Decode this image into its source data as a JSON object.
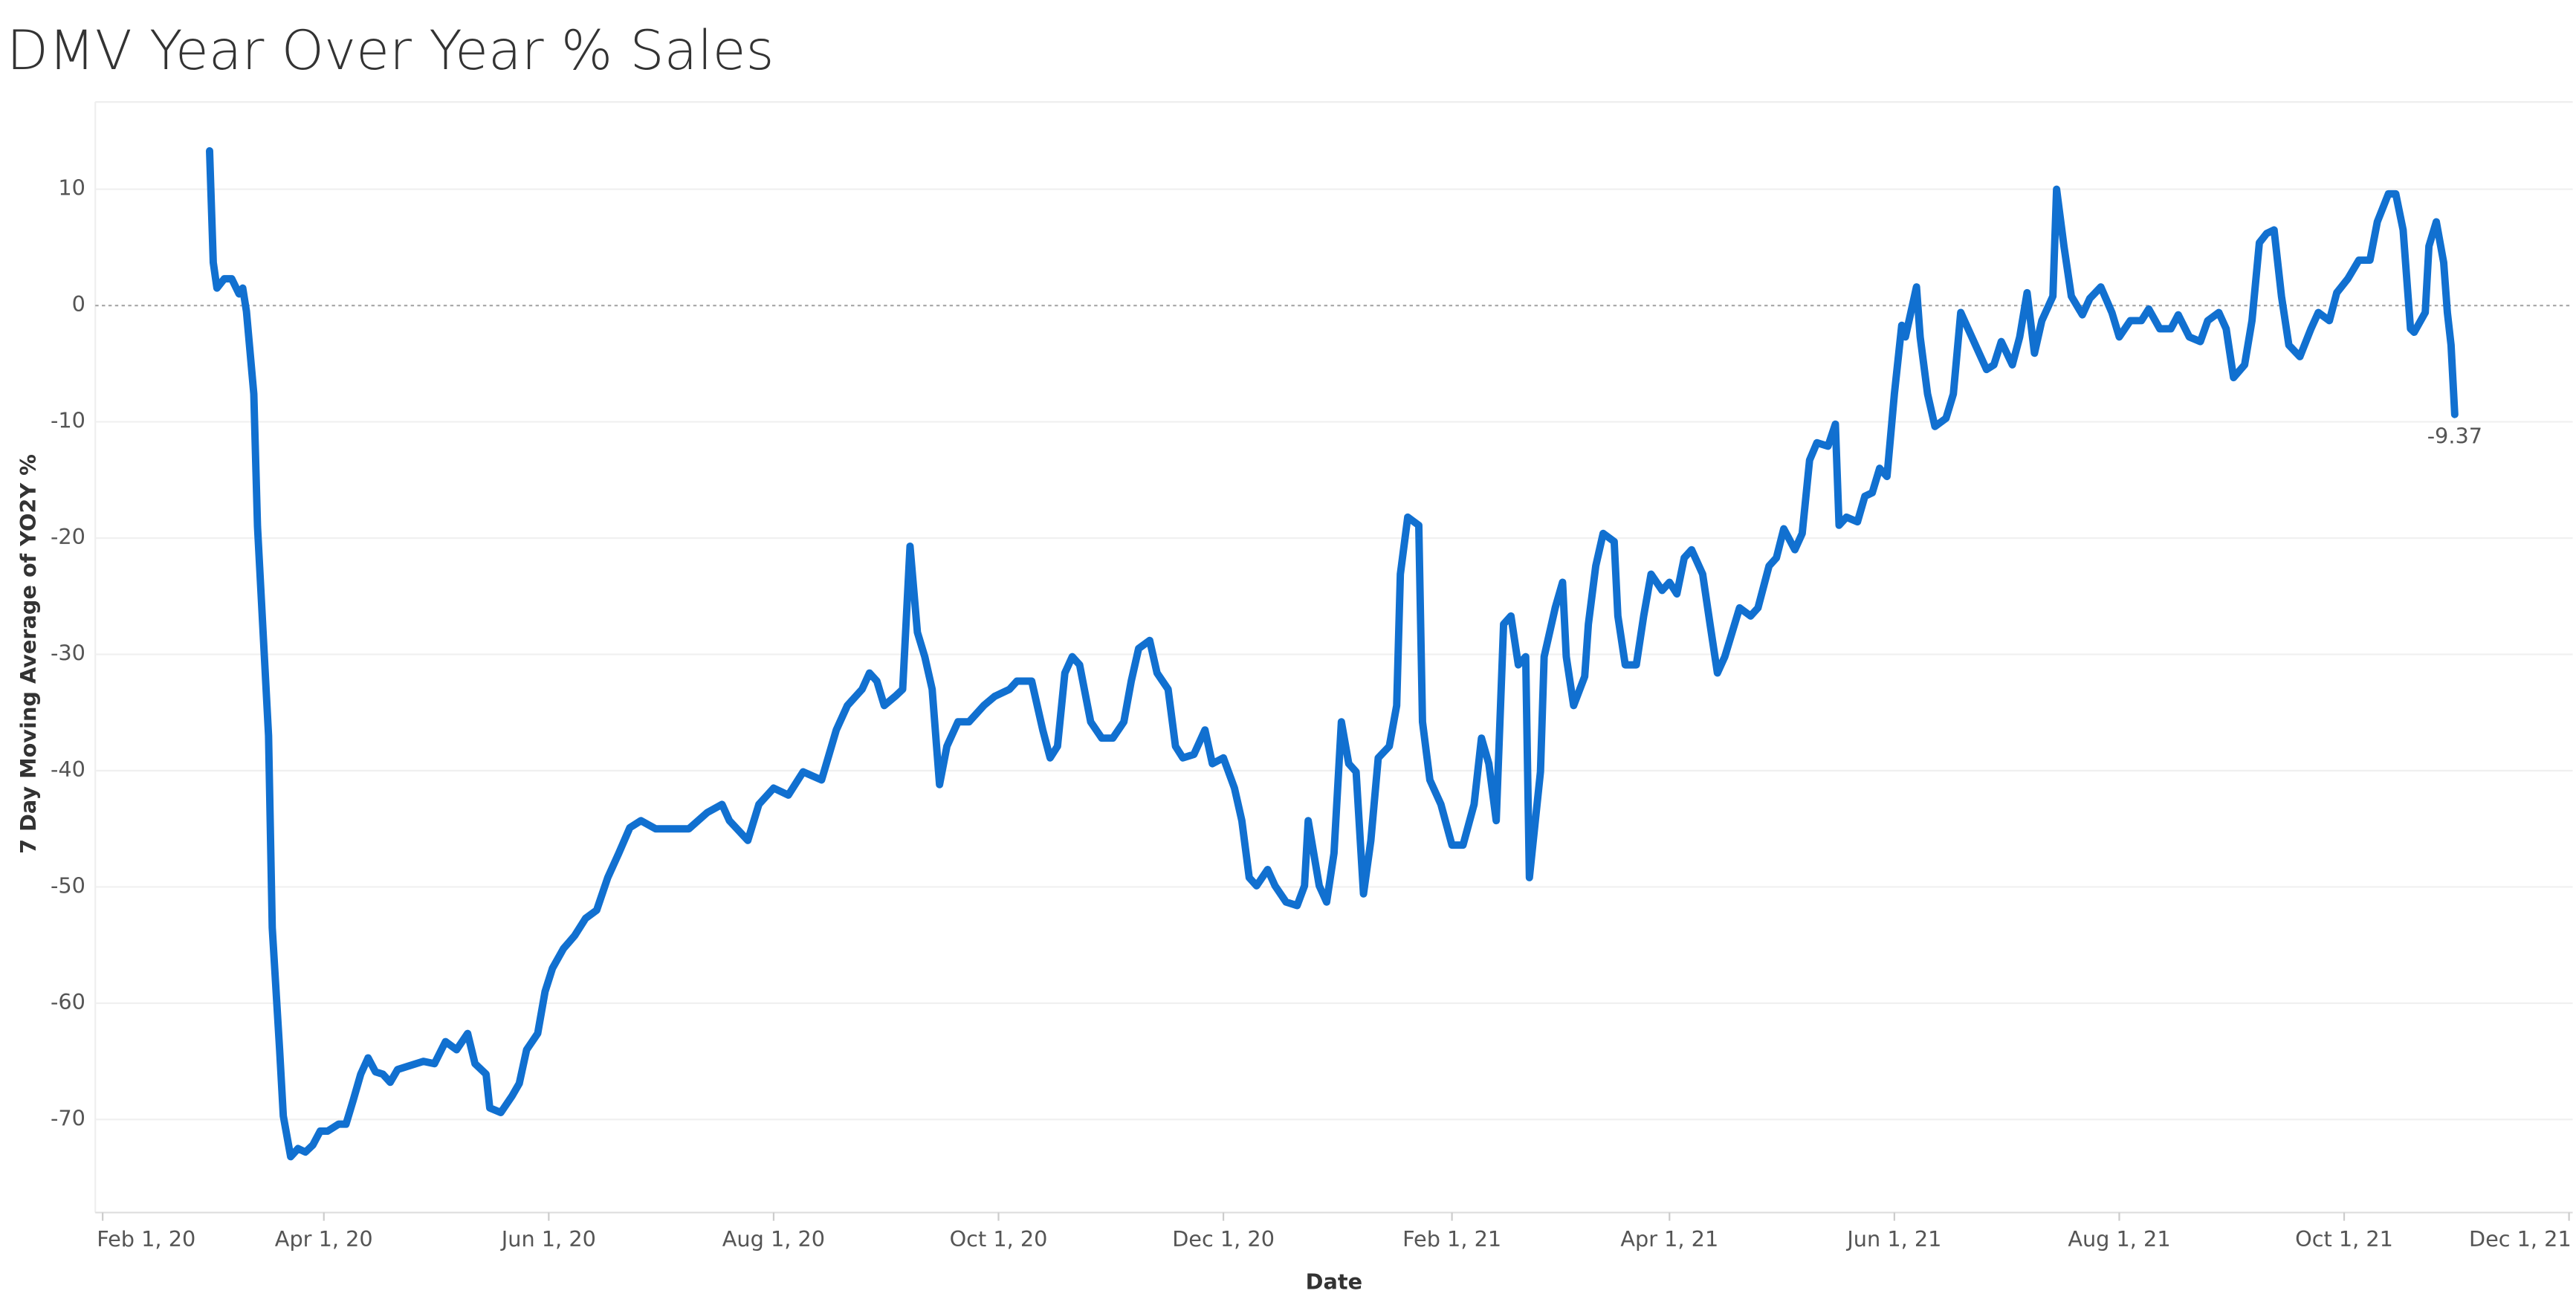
{
  "chart_data": {
    "type": "line",
    "title": "DMV Year Over Year % Sales",
    "x_label": "Date",
    "y_label": "7 Day Moving Average of YO2Y %",
    "color": "#1170d0",
    "grid": true,
    "zero_line": true,
    "xlim": [
      "2020-01-30",
      "2021-12-02"
    ],
    "xticks": [
      {
        "value": "2020-02-01",
        "label": "Feb 1, 20"
      },
      {
        "value": "2020-04-01",
        "label": "Apr 1, 20"
      },
      {
        "value": "2020-06-01",
        "label": "Jun 1, 20"
      },
      {
        "value": "2020-08-01",
        "label": "Aug 1, 20"
      },
      {
        "value": "2020-10-01",
        "label": "Oct 1, 20"
      },
      {
        "value": "2020-12-01",
        "label": "Dec 1, 20"
      },
      {
        "value": "2021-02-01",
        "label": "Feb 1, 21"
      },
      {
        "value": "2021-04-01",
        "label": "Apr 1, 21"
      },
      {
        "value": "2021-06-01",
        "label": "Jun 1, 21"
      },
      {
        "value": "2021-08-01",
        "label": "Aug 1, 21"
      },
      {
        "value": "2021-10-01",
        "label": "Oct 1, 21"
      },
      {
        "value": "2021-12-01",
        "label": "Dec 1, 21"
      }
    ],
    "ylim": [
      -78,
      17.5
    ],
    "yticks": [
      -70,
      -60,
      -50,
      -40,
      -30,
      -20,
      -10,
      0,
      10
    ],
    "x": [
      "2020-03-01",
      "2020-03-02",
      "2020-03-03",
      "2020-03-05",
      "2020-03-07",
      "2020-03-09",
      "2020-03-10",
      "2020-03-11",
      "2020-03-13",
      "2020-03-14",
      "2020-03-17",
      "2020-03-18",
      "2020-03-20",
      "2020-03-21",
      "2020-03-23",
      "2020-03-25",
      "2020-03-27",
      "2020-03-29",
      "2020-03-31",
      "2020-04-02",
      "2020-04-05",
      "2020-04-07",
      "2020-04-09",
      "2020-04-11",
      "2020-04-13",
      "2020-04-15",
      "2020-04-17",
      "2020-04-19",
      "2020-04-21",
      "2020-04-24",
      "2020-04-28",
      "2020-05-01",
      "2020-05-04",
      "2020-05-07",
      "2020-05-10",
      "2020-05-12",
      "2020-05-15",
      "2020-05-16",
      "2020-05-19",
      "2020-05-22",
      "2020-05-24",
      "2020-05-26",
      "2020-05-29",
      "2020-05-31",
      "2020-06-02",
      "2020-06-05",
      "2020-06-08",
      "2020-06-11",
      "2020-06-14",
      "2020-06-17",
      "2020-06-20",
      "2020-06-23",
      "2020-06-26",
      "2020-06-30",
      "2020-07-04",
      "2020-07-09",
      "2020-07-14",
      "2020-07-18",
      "2020-07-20",
      "2020-07-25",
      "2020-07-28",
      "2020-08-01",
      "2020-08-05",
      "2020-08-09",
      "2020-08-14",
      "2020-08-18",
      "2020-08-21",
      "2020-08-25",
      "2020-08-27",
      "2020-08-29",
      "2020-08-31",
      "2020-09-03",
      "2020-09-05",
      "2020-09-07",
      "2020-09-09",
      "2020-09-11",
      "2020-09-13",
      "2020-09-15",
      "2020-09-17",
      "2020-09-20",
      "2020-09-23",
      "2020-09-27",
      "2020-09-30",
      "2020-10-04",
      "2020-10-06",
      "2020-10-10",
      "2020-10-13",
      "2020-10-15",
      "2020-10-17",
      "2020-10-19",
      "2020-10-21",
      "2020-10-23",
      "2020-10-26",
      "2020-10-29",
      "2020-11-01",
      "2020-11-04",
      "2020-11-06",
      "2020-11-08",
      "2020-11-11",
      "2020-11-13",
      "2020-11-16",
      "2020-11-18",
      "2020-11-20",
      "2020-11-23",
      "2020-11-26",
      "2020-11-28",
      "2020-12-01",
      "2020-12-04",
      "2020-12-06",
      "2020-12-08",
      "2020-12-10",
      "2020-12-13",
      "2020-12-15",
      "2020-12-18",
      "2020-12-21",
      "2020-12-23",
      "2020-12-24",
      "2020-12-27",
      "2020-12-29",
      "2020-12-31",
      "2021-01-02",
      "2021-01-04",
      "2021-01-06",
      "2021-01-08",
      "2021-01-10",
      "2021-01-12",
      "2021-01-15",
      "2021-01-17",
      "2021-01-18",
      "2021-01-20",
      "2021-01-23",
      "2021-01-24",
      "2021-01-26",
      "2021-01-29",
      "2021-02-01",
      "2021-02-04",
      "2021-02-07",
      "2021-02-09",
      "2021-02-11",
      "2021-02-13",
      "2021-02-15",
      "2021-02-17",
      "2021-02-19",
      "2021-02-21",
      "2021-02-22",
      "2021-02-25",
      "2021-02-26",
      "2021-03-01",
      "2021-03-03",
      "2021-03-04",
      "2021-03-06",
      "2021-03-09",
      "2021-03-10",
      "2021-03-12",
      "2021-03-14",
      "2021-03-17",
      "2021-03-18",
      "2021-03-20",
      "2021-03-23",
      "2021-03-25",
      "2021-03-27",
      "2021-03-30",
      "2021-04-01",
      "2021-04-03",
      "2021-04-05",
      "2021-04-07",
      "2021-04-10",
      "2021-04-12",
      "2021-04-14",
      "2021-04-16",
      "2021-04-18",
      "2021-04-20",
      "2021-04-23",
      "2021-04-25",
      "2021-04-28",
      "2021-04-30",
      "2021-05-02",
      "2021-05-05",
      "2021-05-07",
      "2021-05-09",
      "2021-05-11",
      "2021-05-14",
      "2021-05-16",
      "2021-05-17",
      "2021-05-19",
      "2021-05-22",
      "2021-05-24",
      "2021-05-26",
      "2021-05-28",
      "2021-05-30",
      "2021-06-01",
      "2021-06-03",
      "2021-06-04",
      "2021-06-07",
      "2021-06-08",
      "2021-06-10",
      "2021-06-12",
      "2021-06-15",
      "2021-06-17",
      "2021-06-19",
      "2021-06-21",
      "2021-06-24",
      "2021-06-26",
      "2021-06-28",
      "2021-06-30",
      "2021-07-03",
      "2021-07-05",
      "2021-07-07",
      "2021-07-09",
      "2021-07-11",
      "2021-07-14",
      "2021-07-15",
      "2021-07-17",
      "2021-07-19",
      "2021-07-22",
      "2021-07-24",
      "2021-07-27",
      "2021-07-30",
      "2021-08-01",
      "2021-08-04",
      "2021-08-07",
      "2021-08-09",
      "2021-08-12",
      "2021-08-15",
      "2021-08-17",
      "2021-08-20",
      "2021-08-23",
      "2021-08-25",
      "2021-08-28",
      "2021-08-30",
      "2021-09-01",
      "2021-09-04",
      "2021-09-06",
      "2021-09-08",
      "2021-09-10",
      "2021-09-12",
      "2021-09-14",
      "2021-09-16",
      "2021-09-19",
      "2021-09-22",
      "2021-09-24",
      "2021-09-27",
      "2021-09-29",
      "2021-10-02",
      "2021-10-05",
      "2021-10-08",
      "2021-10-10",
      "2021-10-13",
      "2021-10-15",
      "2021-10-17",
      "2021-10-19",
      "2021-10-20",
      "2021-10-23",
      "2021-10-24",
      "2021-10-26",
      "2021-10-28",
      "2021-10-29",
      "2021-10-30",
      "2021-10-31"
    ],
    "values": [
      13.3,
      3.7,
      1.5,
      2.3,
      2.3,
      1,
      1.5,
      -0.5,
      -7.6,
      -19,
      -37,
      -53.5,
      -64,
      -69.7,
      -73.2,
      -72.5,
      -72.8,
      -72.2,
      -71,
      -71,
      -70.4,
      -70.4,
      -68.3,
      -66.1,
      -64.7,
      -65.9,
      -66.1,
      -66.8,
      -65.7,
      -65.4,
      -65,
      -65.2,
      -63.3,
      -64,
      -62.6,
      -65.2,
      -66.1,
      -69,
      -69.4,
      -68,
      -66.9,
      -64,
      -62.6,
      -59,
      -57,
      -55.3,
      -54.2,
      -52.7,
      -52,
      -49.2,
      -47.1,
      -44.9,
      -44.3,
      -45,
      -45,
      -45,
      -43.6,
      -42.9,
      -44.3,
      -46,
      -42.9,
      -41.5,
      -42.1,
      -40.1,
      -40.8,
      -36.5,
      -34.4,
      -33,
      -31.6,
      -32.3,
      -34.4,
      -33.6,
      -33,
      -20.7,
      -28.1,
      -30.2,
      -33,
      -41.2,
      -37.9,
      -35.8,
      -35.8,
      -34.4,
      -33.6,
      -33,
      -32.3,
      -32.3,
      -36.5,
      -38.9,
      -37.9,
      -31.6,
      -30.2,
      -30.9,
      -35.8,
      -37.2,
      -37.2,
      -35.8,
      -32.3,
      -29.5,
      -28.8,
      -31.6,
      -33,
      -37.9,
      -38.9,
      -38.6,
      -36.5,
      -39.4,
      -38.9,
      -41.5,
      -44.3,
      -49.2,
      -49.9,
      -48.5,
      -49.9,
      -51.3,
      -51.6,
      -49.9,
      -44.3,
      -49.9,
      -51.3,
      -47.1,
      -35.8,
      -39.4,
      -40.1,
      -50.6,
      -46,
      -38.9,
      -37.9,
      -34.4,
      -23.1,
      -18.2,
      -18.9,
      -35.8,
      -40.8,
      -42.9,
      -46.4,
      -46.4,
      -42.9,
      -37.2,
      -39.4,
      -44.3,
      -27.4,
      -26.7,
      -30.9,
      -30.2,
      -49.2,
      -40.1,
      -30.2,
      -26,
      -23.8,
      -30.2,
      -34.4,
      -31.9,
      -27.4,
      -22.4,
      -19.6,
      -20.3,
      -26.7,
      -30.9,
      -30.9,
      -26.7,
      -23.1,
      -24.5,
      -23.8,
      -24.8,
      -21.7,
      -21,
      -23.1,
      -27.4,
      -31.6,
      -30.2,
      -28.1,
      -26,
      -26.7,
      -26,
      -22.4,
      -21.7,
      -19.2,
      -21,
      -19.6,
      -13.3,
      -11.8,
      -12.1,
      -10.2,
      -18.9,
      -18.2,
      -18.6,
      -16.4,
      -16.1,
      -14,
      -14.7,
      -7.6,
      -1.7,
      -2.7,
      1.6,
      -2.7,
      -7.6,
      -10.4,
      -9.7,
      -7.6,
      -0.6,
      -2,
      -4.1,
      -5.5,
      -5.1,
      -3.1,
      -5.1,
      -2.7,
      1.1,
      -4.1,
      -1.3,
      0.8,
      10,
      5.1,
      0.8,
      -0.8,
      0.6,
      1.6,
      -0.6,
      -2.7,
      -1.3,
      -1.3,
      -0.3,
      -2,
      -2,
      -0.8,
      -2.7,
      -3.1,
      -1.3,
      -0.6,
      -2,
      -6.2,
      -5.1,
      -1.3,
      5.4,
      6.2,
      6.5,
      0.8,
      -3.4,
      -4.4,
      -2,
      -0.6,
      -1.3,
      1.1,
      2.3,
      3.9,
      3.9,
      7.2,
      9.6,
      9.6,
      6.5,
      -2,
      -2.3,
      -0.6,
      5.1,
      7.2,
      3.7,
      -0.6,
      -3.4,
      -9.37
    ]
  }
}
